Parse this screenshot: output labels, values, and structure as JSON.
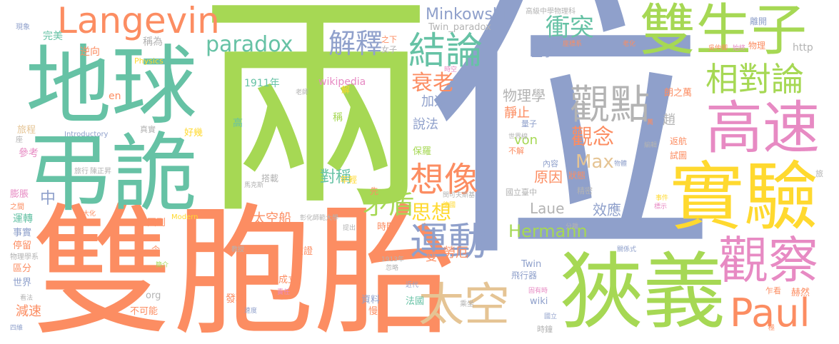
{
  "cloud": {
    "words": [
      {
        "text": "位",
        "color": "#8fa0cb"
      },
      {
        "text": "兩",
        "color": "#a6d854"
      },
      {
        "text": "雙胞胎",
        "color": "#fc8d62"
      },
      {
        "text": "地球",
        "color": "#66c2a5"
      },
      {
        "text": "弔詭",
        "color": "#66c2a5"
      },
      {
        "text": "狹義",
        "color": "#a6d854"
      },
      {
        "text": "實驗",
        "color": "#ffd92f"
      },
      {
        "text": "雙生子",
        "color": "#a6d854"
      },
      {
        "text": "高速",
        "color": "#e78ac3"
      },
      {
        "text": "觀察",
        "color": "#e78ac3"
      },
      {
        "text": "太空",
        "color": "#e5c494"
      },
      {
        "text": "Paul",
        "color": "#fc8d62"
      },
      {
        "text": "Langevin",
        "color": "#fc8d62"
      },
      {
        "text": "相對論",
        "color": "#a6d854"
      },
      {
        "text": "觀點",
        "color": "#b3b3b3"
      },
      {
        "text": "運動",
        "color": "#8fa0cb"
      },
      {
        "text": "結論",
        "color": "#66c2a5"
      },
      {
        "text": "想像",
        "color": "#fc8d62"
      },
      {
        "text": "paradox",
        "color": "#66c2a5"
      },
      {
        "text": "解釋",
        "color": "#8fa0cb"
      },
      {
        "text": "衝突",
        "color": "#66c2a5"
      },
      {
        "text": "Minkowski",
        "color": "#8fa0cb"
      },
      {
        "text": "Twin_paradox",
        "color": "#b3b3b3"
      },
      {
        "text": "高級中學物理科",
        "color": "#b3b3b3"
      },
      {
        "text": "矛盾",
        "color": "#a6d854"
      },
      {
        "text": "衰老",
        "color": "#fc8d62"
      },
      {
        "text": "思想",
        "color": "#ffd92f"
      },
      {
        "text": "觀念",
        "color": "#fc8d62"
      },
      {
        "text": "Hermann",
        "color": "#a6d854"
      },
      {
        "text": "Max",
        "color": "#e5c494"
      },
      {
        "text": "Laue",
        "color": "#b3b3b3"
      },
      {
        "text": "von",
        "color": "#a6d854"
      },
      {
        "text": "效應",
        "color": "#8fa0cb"
      },
      {
        "text": "原因",
        "color": "#fc8d62"
      },
      {
        "text": "對稱",
        "color": "#66c2a5"
      },
      {
        "text": "太空船",
        "color": "#fc8d62"
      },
      {
        "text": "物理學",
        "color": "#b3b3b3"
      },
      {
        "text": "靜止",
        "color": "#fc8d62"
      },
      {
        "text": "加速",
        "color": "#8fa0cb"
      },
      {
        "text": "說法",
        "color": "#8fa0cb"
      },
      {
        "text": "生子",
        "color": "#8fa0cb"
      },
      {
        "text": "wikipedia",
        "color": "#e78ac3"
      },
      {
        "text": "1911年",
        "color": "#66c2a5"
      },
      {
        "text": "高",
        "color": "#66c2a5"
      },
      {
        "text": "稱",
        "color": "#a6d854"
      },
      {
        "text": "解",
        "color": "#ffd92f"
      },
      {
        "text": "中",
        "color": "#8fa0cb"
      },
      {
        "text": "完美",
        "color": "#66c2a5"
      },
      {
        "text": "逆向",
        "color": "#fc8d62"
      },
      {
        "text": "稱為",
        "color": "#b3b3b3"
      },
      {
        "text": "Physics",
        "color": "#ffd92f"
      },
      {
        "text": "之下",
        "color": "#fc8d62"
      },
      {
        "text": "女子",
        "color": "#b3b3b3"
      },
      {
        "text": "現象",
        "color": "#8fa0cb"
      },
      {
        "text": "en",
        "color": "#fc8d62"
      },
      {
        "text": "旅程",
        "color": "#e5c494"
      },
      {
        "text": "參考",
        "color": "#e78ac3"
      },
      {
        "text": "好幾",
        "color": "#ffd92f"
      },
      {
        "text": "真實",
        "color": "#b3b3b3"
      },
      {
        "text": "Introductory",
        "color": "#8fa0cb"
      },
      {
        "text": "座",
        "color": "#b3b3b3"
      },
      {
        "text": "旅行",
        "color": "#b3b3b3"
      },
      {
        "text": "陳正昇",
        "color": "#b3b3b3"
      },
      {
        "text": "搭載",
        "color": "#b3b3b3"
      },
      {
        "text": "年輕",
        "color": "#ffd92f"
      },
      {
        "text": "先",
        "color": "#fc8d62"
      },
      {
        "text": "膨脹",
        "color": "#e78ac3"
      },
      {
        "text": "之間",
        "color": "#fc8d62"
      },
      {
        "text": "運轉",
        "color": "#66c2a5"
      },
      {
        "text": "大化",
        "color": "#fc8d62"
      },
      {
        "text": "Modern",
        "color": "#ffd92f"
      },
      {
        "text": "彰化師範大學",
        "color": "#b3b3b3"
      },
      {
        "text": "提出",
        "color": "#b3b3b3"
      },
      {
        "text": "事實",
        "color": "#8fa0cb"
      },
      {
        "text": "停留",
        "color": "#fc8d62"
      },
      {
        "text": "回到",
        "color": "#fc8d62"
      },
      {
        "text": "時間",
        "color": "#fc8d62"
      },
      {
        "text": "物理學系",
        "color": "#b3b3b3"
      },
      {
        "text": "區分",
        "color": "#fc8d62"
      },
      {
        "text": "世界",
        "color": "#8fa0cb"
      },
      {
        "text": "令",
        "color": "#fc8d62"
      },
      {
        "text": "教授",
        "color": "#b3b3b3"
      },
      {
        "text": "驗證",
        "color": "#fc8d62"
      },
      {
        "text": "馬克斯",
        "color": "#b3b3b3"
      },
      {
        "text": "看法",
        "color": "#b3b3b3"
      },
      {
        "text": "簡介",
        "color": "#a6d854"
      },
      {
        "text": "1913年",
        "color": "#b3b3b3"
      },
      {
        "text": "成立",
        "color": "#fc8d62"
      },
      {
        "text": "減速",
        "color": "#fc8d62"
      },
      {
        "text": "不可能",
        "color": "#fc8d62"
      },
      {
        "text": "org",
        "color": "#b3b3b3"
      },
      {
        "text": "忽略",
        "color": "#b3b3b3"
      },
      {
        "text": "近代",
        "color": "#8fa0cb"
      },
      {
        "text": "責任",
        "color": "#e78ac3"
      },
      {
        "text": "發現",
        "color": "#fc8d62"
      },
      {
        "text": "速度",
        "color": "#8fa0cb"
      },
      {
        "text": "資料",
        "color": "#8fa0cb"
      },
      {
        "text": "慢",
        "color": "#fc8d62"
      },
      {
        "text": "雙",
        "color": "#fc8d62"
      },
      {
        "text": "勞厄",
        "color": "#fc8d62"
      },
      {
        "text": "法國",
        "color": "#66c2a5"
      },
      {
        "text": "乘坐",
        "color": "#b3b3b3"
      },
      {
        "text": "四維",
        "color": "#8fa0cb"
      },
      {
        "text": "Twin",
        "color": "#8fa0cb"
      },
      {
        "text": "飛行器",
        "color": "#8fa0cb"
      },
      {
        "text": "wiki",
        "color": "#8fa0cb"
      },
      {
        "text": "時鐘",
        "color": "#b3b3b3"
      },
      {
        "text": "固有時",
        "color": "#e78ac3"
      },
      {
        "text": "國立",
        "color": "#8fa0cb"
      },
      {
        "text": "國立臺中",
        "color": "#b3b3b3"
      },
      {
        "text": "閔可夫斯基",
        "color": "#b3b3b3"
      },
      {
        "text": "德國",
        "color": "#ffd92f"
      },
      {
        "text": "內容",
        "color": "#8fa0cb"
      },
      {
        "text": "狀態",
        "color": "#fc8d62"
      },
      {
        "text": "精密",
        "color": "#b3b3b3"
      },
      {
        "text": "物體",
        "color": "#8fa0cb"
      },
      {
        "text": "不解",
        "color": "#fc8d62"
      },
      {
        "text": "世界線",
        "color": "#b3b3b3"
      },
      {
        "text": "量子",
        "color": "#8fa0cb"
      },
      {
        "text": "時空",
        "color": "#e78ac3"
      },
      {
        "text": "趙",
        "color": "#b3b3b3"
      },
      {
        "text": "保羅",
        "color": "#a6d854"
      },
      {
        "text": "朗之萬",
        "color": "#fc8d62"
      },
      {
        "text": "萬",
        "color": "#fc8d62"
      },
      {
        "text": "返航",
        "color": "#fc8d62"
      },
      {
        "text": "編輯",
        "color": "#b3b3b3"
      },
      {
        "text": "試圖",
        "color": "#fc8d62"
      },
      {
        "text": "座標系",
        "color": "#fc8d62"
      },
      {
        "text": "老化",
        "color": "#fc8d62"
      },
      {
        "text": "吳仲卿",
        "color": "#fc8d62"
      },
      {
        "text": "物理",
        "color": "#fc8d62"
      },
      {
        "text": "離開",
        "color": "#8fa0cb"
      },
      {
        "text": "始終",
        "color": "#e78ac3"
      },
      {
        "text": "http",
        "color": "#b3b3b3"
      },
      {
        "text": "旅",
        "color": "#b3b3b3"
      },
      {
        "text": "事件",
        "color": "#ffd92f"
      },
      {
        "text": "標示",
        "color": "#e78ac3"
      },
      {
        "text": "分離",
        "color": "#b3b3b3"
      },
      {
        "text": "關係式",
        "color": "#8fa0cb"
      },
      {
        "text": "乍看",
        "color": "#fc8d62"
      },
      {
        "text": "赫然",
        "color": "#fc8d62"
      },
      {
        "text": "極",
        "color": "#fc8d62"
      },
      {
        "text": "老師",
        "color": "#b3b3b3"
      }
    ]
  }
}
